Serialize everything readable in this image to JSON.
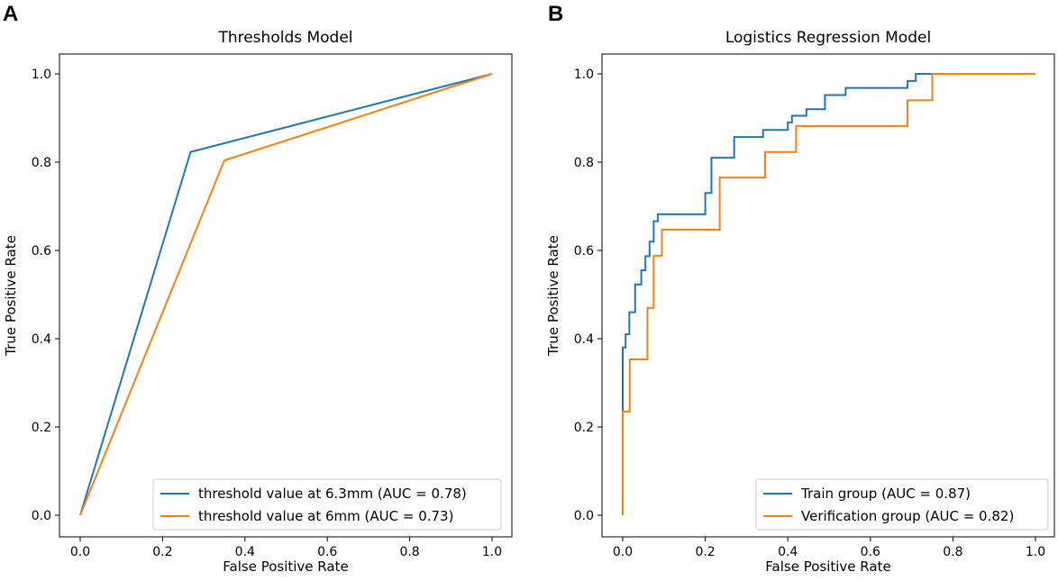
{
  "chart_data": [
    {
      "panel": "A",
      "type": "line",
      "title": "Thresholds  Model",
      "xlabel": "False Positive Rate",
      "ylabel": "True Positive Rate",
      "xlim": [
        0,
        1
      ],
      "ylim": [
        0,
        1
      ],
      "xticks": [
        "0.0",
        "0.2",
        "0.4",
        "0.6",
        "0.8",
        "1.0"
      ],
      "yticks": [
        "0.0",
        "0.2",
        "0.4",
        "0.6",
        "0.8",
        "1.0"
      ],
      "legend_position": "lower-right",
      "series": [
        {
          "name": "threshold value at 6.3mm (AUC = 0.78)",
          "color": "#1f77b4",
          "x": [
            0,
            0.268,
            1
          ],
          "y": [
            0,
            0.823,
            1
          ]
        },
        {
          "name": "threshold value at 6mm (AUC = 0.73)",
          "color": "#ff7f0e",
          "x": [
            0,
            0.35,
            1
          ],
          "y": [
            0,
            0.804,
            1
          ]
        }
      ]
    },
    {
      "panel": "B",
      "type": "line",
      "title": "Logistics Regression Model",
      "xlabel": "False Positive Rate",
      "ylabel": "True Positive Rate",
      "xlim": [
        0,
        1
      ],
      "ylim": [
        0,
        1
      ],
      "xticks": [
        "0.0",
        "0.2",
        "0.4",
        "0.6",
        "0.8",
        "1.0"
      ],
      "yticks": [
        "0.0",
        "0.2",
        "0.4",
        "0.6",
        "0.8",
        "1.0"
      ],
      "legend_position": "lower-right",
      "series": [
        {
          "name": "Train group (AUC = 0.87)",
          "color": "#1f77b4",
          "x": [
            0,
            0,
            0.007,
            0.007,
            0.016,
            0.016,
            0.03,
            0.03,
            0.045,
            0.045,
            0.055,
            0.055,
            0.065,
            0.065,
            0.075,
            0.075,
            0.085,
            0.085,
            0.095,
            0.095,
            0.2,
            0.2,
            0.215,
            0.215,
            0.27,
            0.27,
            0.34,
            0.34,
            0.4,
            0.4,
            0.41,
            0.41,
            0.445,
            0.445,
            0.49,
            0.49,
            0.54,
            0.54,
            0.69,
            0.69,
            0.71,
            0.71,
            0.75,
            1
          ],
          "y": [
            0,
            0.38,
            0.38,
            0.41,
            0.41,
            0.46,
            0.46,
            0.523,
            0.523,
            0.555,
            0.555,
            0.587,
            0.587,
            0.62,
            0.62,
            0.666,
            0.666,
            0.682,
            0.682,
            0.682,
            0.682,
            0.73,
            0.73,
            0.81,
            0.81,
            0.857,
            0.857,
            0.873,
            0.873,
            0.89,
            0.89,
            0.905,
            0.905,
            0.92,
            0.92,
            0.952,
            0.952,
            0.968,
            0.968,
            0.984,
            0.984,
            1.0,
            1.0,
            1.0
          ]
        },
        {
          "name": "Verification group (AUC = 0.82)",
          "color": "#ff7f0e",
          "x": [
            0,
            0,
            0.017,
            0.017,
            0.06,
            0.06,
            0.075,
            0.075,
            0.095,
            0.095,
            0.235,
            0.235,
            0.345,
            0.345,
            0.42,
            0.42,
            0.69,
            0.69,
            0.75,
            0.75,
            1
          ],
          "y": [
            0,
            0.235,
            0.235,
            0.353,
            0.353,
            0.47,
            0.47,
            0.588,
            0.588,
            0.647,
            0.647,
            0.765,
            0.765,
            0.823,
            0.823,
            0.882,
            0.882,
            0.94,
            0.94,
            1.0,
            1.0
          ]
        }
      ]
    }
  ]
}
